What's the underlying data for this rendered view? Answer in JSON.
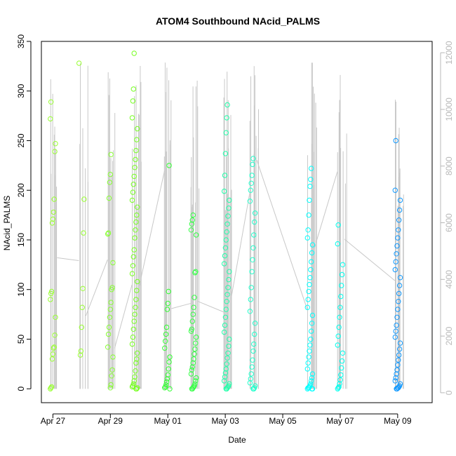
{
  "chart_data": {
    "type": "scatter",
    "title": "ATOM4 Southbound NAcid_PALMS",
    "xlabel": "Date",
    "ylabel": "NAcid_PALMS",
    "x_ticks": [
      {
        "label": "Apr 27",
        "day": 0
      },
      {
        "label": "Apr 29",
        "day": 2
      },
      {
        "label": "May 01",
        "day": 4
      },
      {
        "label": "May 03",
        "day": 6
      },
      {
        "label": "May 05",
        "day": 8
      },
      {
        "label": "May 07",
        "day": 10
      },
      {
        "label": "May 09",
        "day": 12
      }
    ],
    "xlim_days": [
      -0.4,
      13.2
    ],
    "ylim": [
      -14,
      350
    ],
    "y_ticks": [
      0,
      50,
      100,
      150,
      200,
      250,
      300,
      350
    ],
    "y2_ticks": [
      0,
      2000,
      4000,
      6000,
      8000,
      10000,
      12000
    ],
    "y2lim": [
      -350,
      12400
    ],
    "grid": false,
    "left_axis_color": "#000000",
    "right_axis_color": "#b8b8b8",
    "altitude_line_color": "#c8c8c8",
    "point_color_scale": [
      "#99ff00",
      "#33ff00",
      "#00ffcc",
      "#00ffff",
      "#0099ff"
    ],
    "flights": [
      {
        "day": 0.0,
        "color": "#99ff33",
        "values": [
          0,
          1,
          2,
          30,
          35,
          41,
          42,
          54,
          72,
          90,
          96,
          98,
          167,
          171,
          178,
          191,
          239,
          247,
          272,
          289
        ]
      },
      {
        "day": 1.0,
        "color": "#99ff33",
        "values": [
          34,
          38,
          62,
          82,
          101,
          157,
          191,
          328
        ]
      },
      {
        "day": 2.0,
        "color": "#88ff33",
        "values": [
          1,
          4,
          13,
          19,
          32,
          42,
          55,
          62,
          72,
          80,
          87,
          100,
          102,
          127,
          156,
          157,
          192,
          208,
          216,
          236
        ]
      },
      {
        "day": 2.85,
        "color": "#77ff22",
        "values": [
          0,
          0,
          1,
          2,
          3,
          5,
          8,
          12,
          18,
          26,
          30,
          36,
          45,
          52,
          60,
          68,
          75,
          82,
          90,
          99,
          108,
          116,
          124,
          133,
          140,
          152,
          160,
          168,
          175,
          183,
          190,
          198,
          206,
          214,
          223,
          231,
          240,
          251,
          262,
          273,
          290,
          302,
          338
        ]
      },
      {
        "day": 3.98,
        "color": "#33ff33",
        "values": [
          0,
          1,
          2,
          4,
          7,
          10,
          14,
          20,
          27,
          32,
          41,
          48,
          55,
          62,
          80,
          86,
          98,
          225
        ]
      },
      {
        "day": 4.9,
        "color": "#33ff44",
        "values": [
          0,
          0,
          1,
          2,
          3,
          5,
          8,
          11,
          15,
          19,
          22,
          26,
          30,
          35,
          40,
          46,
          52,
          58,
          60,
          68,
          75,
          82,
          92,
          117,
          118,
          155,
          160,
          166,
          170,
          175
        ]
      },
      {
        "day": 6.05,
        "color": "#22ffaa",
        "values": [
          0,
          0,
          1,
          2,
          3,
          5,
          8,
          12,
          16,
          20,
          25,
          31,
          36,
          43,
          50,
          57,
          64,
          72,
          80,
          88,
          95,
          102,
          110,
          118,
          126,
          134,
          142,
          150,
          158,
          166,
          174,
          182,
          190,
          199,
          215,
          237,
          258,
          273,
          286
        ]
      },
      {
        "day": 6.95,
        "color": "#22ffcc",
        "values": [
          0,
          0,
          1,
          3,
          6,
          10,
          15,
          22,
          29,
          38,
          45,
          55,
          66,
          78,
          90,
          102,
          118,
          130,
          142,
          155,
          168,
          177,
          189,
          200,
          207,
          215,
          226,
          232
        ]
      },
      {
        "day": 8.95,
        "color": "#00ffff",
        "values": [
          0,
          0,
          0,
          1,
          1,
          2,
          3,
          5,
          8,
          11,
          15,
          20,
          26,
          32,
          38,
          44,
          50,
          58,
          66,
          74,
          82,
          90,
          98,
          105,
          112,
          120,
          128,
          137,
          145,
          152,
          160,
          175,
          190,
          204,
          211,
          222
        ]
      },
      {
        "day": 10.0,
        "color": "#00ffee",
        "values": [
          0,
          1,
          2,
          5,
          9,
          14,
          21,
          28,
          36,
          44,
          53,
          62,
          72,
          82,
          93,
          104,
          115,
          125,
          146,
          165
        ]
      },
      {
        "day": 12.0,
        "color": "#1199ff",
        "values": [
          0,
          0,
          1,
          1,
          2,
          3,
          5,
          8,
          11,
          15,
          19,
          24,
          29,
          34,
          40,
          46,
          52,
          58,
          64,
          72,
          80,
          88,
          96,
          104,
          112,
          120,
          128,
          136,
          144,
          152,
          160,
          170,
          180,
          190,
          200,
          250
        ]
      }
    ]
  }
}
